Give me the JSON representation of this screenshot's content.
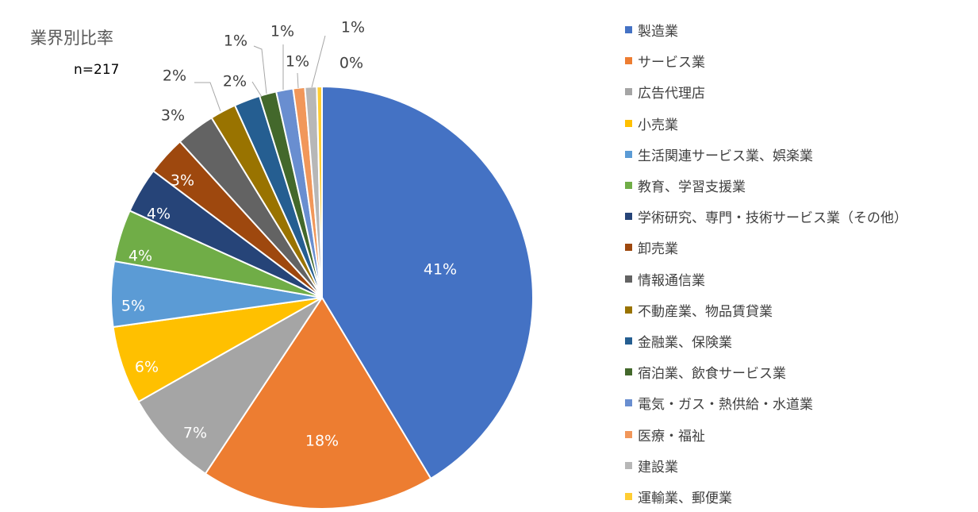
{
  "title": "業界別比率",
  "subtitle": "n=217",
  "chart_data": {
    "type": "pie",
    "title": "業界別比率",
    "subtitle": "n=217",
    "legend_position": "right",
    "categories": [
      "製造業",
      "サービス業",
      "広告代理店",
      "小売業",
      "生活関連サービス業、娯楽業",
      "教育、学習支援業",
      "学術研究、専門・技術サービス業（その他）",
      "卸売業",
      "情報通信業",
      "不動産業、物品賃貸業",
      "金融業、保険業",
      "宿泊業、飲食サービス業",
      "電気・ガス・熱供給・水道業",
      "医療・福祉",
      "建設業",
      "運輸業、郵便業"
    ],
    "values": [
      41,
      18,
      7,
      6,
      5,
      4,
      4,
      3,
      3,
      2,
      2,
      1,
      1,
      1,
      1,
      0
    ],
    "shares": [
      0.415,
      0.18,
      0.075,
      0.06,
      0.05,
      0.04,
      0.035,
      0.03,
      0.03,
      0.02,
      0.02,
      0.013,
      0.013,
      0.009,
      0.009,
      0.004
    ],
    "labels": [
      "41%",
      "18%",
      "7%",
      "6%",
      "5%",
      "4%",
      "4%",
      "3%",
      "3%",
      "2%",
      "2%",
      "1%",
      "1%",
      "1%",
      "1%",
      "0%"
    ],
    "colors": [
      "#4472C4",
      "#ED7D31",
      "#A5A5A5",
      "#FFC000",
      "#5B9BD5",
      "#70AD47",
      "#264478",
      "#9E480E",
      "#636363",
      "#997300",
      "#255E91",
      "#43682B",
      "#698ED0",
      "#F1975A",
      "#B7B7B7",
      "#FFCD33"
    ],
    "label_colors": [
      "#ffffff",
      "#ffffff",
      "#ffffff",
      "#ffffff",
      "#ffffff",
      "#ffffff",
      "#ffffff",
      "#ffffff",
      "#404040",
      "#404040",
      "#404040",
      "#404040",
      "#404040",
      "#404040",
      "#404040",
      "#404040"
    ]
  }
}
